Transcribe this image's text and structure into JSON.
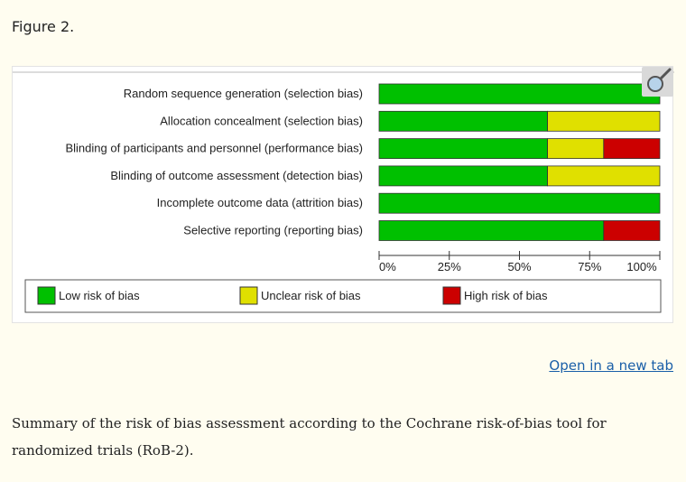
{
  "figure_label": "Figure 2.",
  "open_link": "Open in a new tab",
  "caption": "Summary of the risk of bias assessment according to the Cochrane risk-of-bias tool for randomized trials (RoB-2).",
  "colors": {
    "low": "#00c000",
    "unclear": "#e0e000",
    "high": "#cc0000"
  },
  "chart_data": {
    "type": "bar",
    "orientation": "horizontal-stacked-percent",
    "categories": [
      "Random sequence generation (selection bias)",
      "Allocation concealment (selection bias)",
      "Blinding of participants and personnel (performance bias)",
      "Blinding of outcome assessment (detection bias)",
      "Incomplete outcome data (attrition bias)",
      "Selective reporting (reporting bias)"
    ],
    "series": [
      {
        "name": "Low risk of bias",
        "color": "#00c000",
        "values": [
          100,
          60,
          60,
          60,
          100,
          80
        ]
      },
      {
        "name": "Unclear risk of bias",
        "color": "#e0e000",
        "values": [
          0,
          40,
          20,
          40,
          0,
          0
        ]
      },
      {
        "name": "High risk of bias",
        "color": "#cc0000",
        "values": [
          0,
          0,
          20,
          0,
          0,
          20
        ]
      }
    ],
    "xlim": [
      0,
      100
    ],
    "xticks": [
      "0%",
      "25%",
      "50%",
      "75%",
      "100%"
    ],
    "legend_position": "bottom"
  }
}
